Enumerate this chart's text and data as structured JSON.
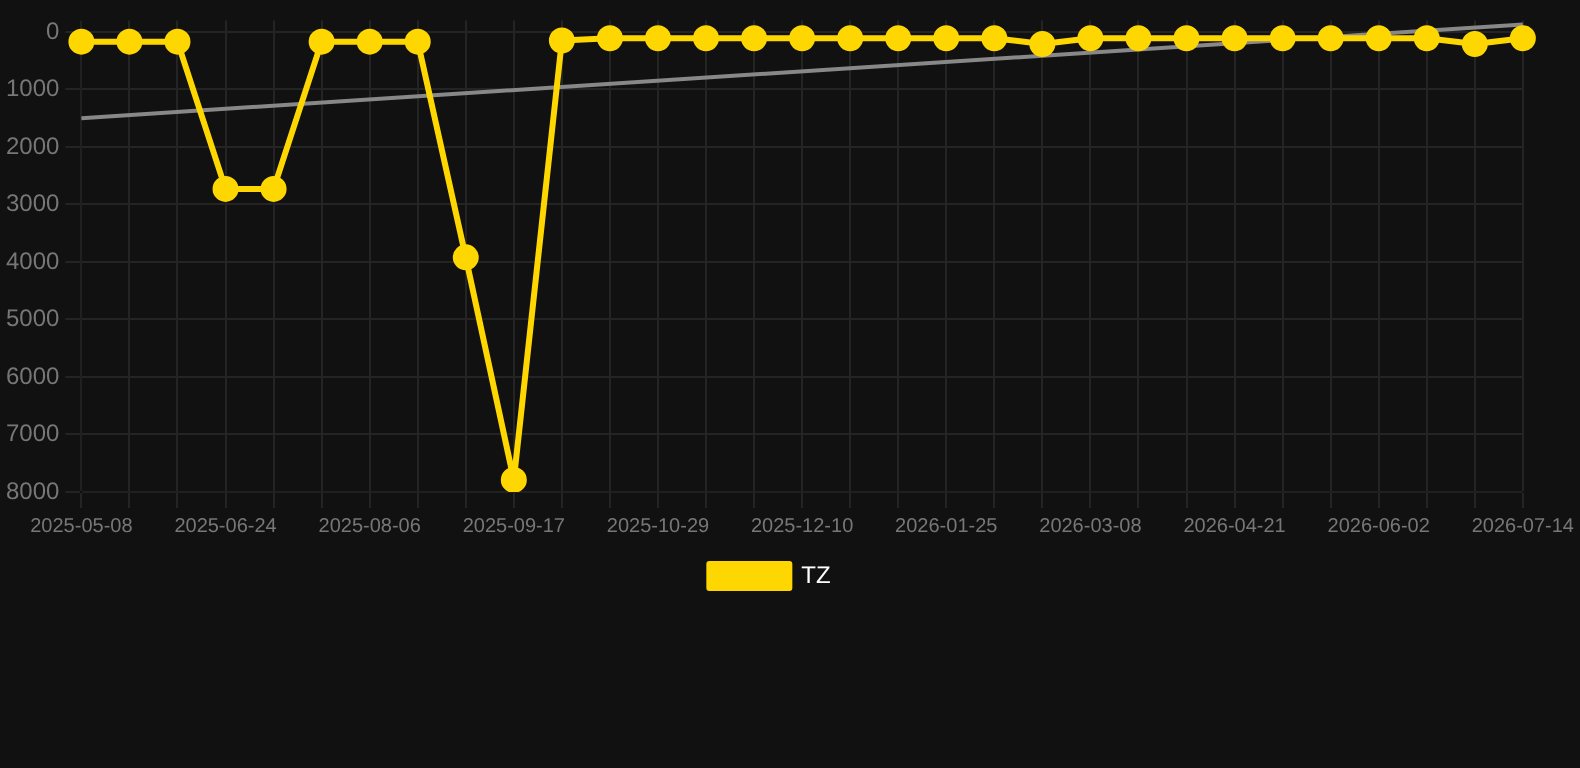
{
  "chart_data": {
    "type": "line",
    "categories": [
      "2025-05-08",
      null,
      null,
      "2025-06-24",
      null,
      null,
      "2025-08-06",
      null,
      null,
      "2025-09-17",
      null,
      null,
      "2025-10-29",
      null,
      null,
      "2025-12-10",
      null,
      null,
      "2026-01-25",
      null,
      null,
      "2026-03-08",
      null,
      null,
      "2026-04-21",
      null,
      null,
      "2026-06-02",
      null,
      null,
      "2026-07-14"
    ],
    "series": [
      {
        "name": "TZ",
        "color": "#ffd700",
        "marker": "circle",
        "values": [
          170,
          170,
          170,
          2730,
          2730,
          170,
          170,
          170,
          3920,
          7790,
          150,
          110,
          110,
          110,
          110,
          110,
          110,
          110,
          110,
          110,
          210,
          110,
          110,
          110,
          110,
          110,
          110,
          110,
          110,
          210,
          110
        ]
      },
      {
        "type": "line",
        "color": "#888888",
        "marker": "none",
        "values": [
          1500,
          null,
          null,
          null,
          null,
          null,
          null,
          null,
          null,
          null,
          null,
          null,
          null,
          null,
          null,
          null,
          null,
          null,
          null,
          null,
          null,
          null,
          null,
          null,
          null,
          null,
          null,
          null,
          null,
          null,
          -130
        ]
      }
    ],
    "ylim": [
      8000,
      -200
    ],
    "yticks": [
      0,
      1000,
      2000,
      3000,
      4000,
      5000,
      6000,
      7000,
      8000
    ],
    "grid": true,
    "legend": "bottom"
  }
}
